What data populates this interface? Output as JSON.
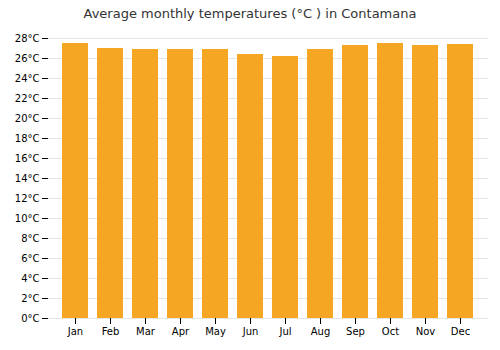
{
  "chart_data": {
    "type": "bar",
    "title": "Average monthly temperatures (°C ) in Contamana",
    "categories": [
      "Jan",
      "Feb",
      "Mar",
      "Apr",
      "May",
      "Jun",
      "Jul",
      "Aug",
      "Sep",
      "Oct",
      "Nov",
      "Dec"
    ],
    "values": [
      27.5,
      27.0,
      26.9,
      26.9,
      26.9,
      26.4,
      26.2,
      26.9,
      27.3,
      27.5,
      27.3,
      27.4
    ],
    "color": "#F5A623",
    "ylim": [
      0,
      28
    ],
    "yticks": [
      {
        "value": 0,
        "label": "0°C"
      },
      {
        "value": 2,
        "label": "2°C"
      },
      {
        "value": 4,
        "label": "4°C"
      },
      {
        "value": 6,
        "label": "6°C"
      },
      {
        "value": 8,
        "label": "8°C"
      },
      {
        "value": 10,
        "label": "10°C"
      },
      {
        "value": 12,
        "label": "12°C"
      },
      {
        "value": 14,
        "label": "14°C"
      },
      {
        "value": 16,
        "label": "16°C"
      },
      {
        "value": 18,
        "label": "18°C"
      },
      {
        "value": 20,
        "label": "20°C"
      },
      {
        "value": 22,
        "label": "22°C"
      },
      {
        "value": 24,
        "label": "24°C"
      },
      {
        "value": 26,
        "label": "26°C"
      },
      {
        "value": 28,
        "label": "28°C"
      }
    ],
    "grid": true
  }
}
